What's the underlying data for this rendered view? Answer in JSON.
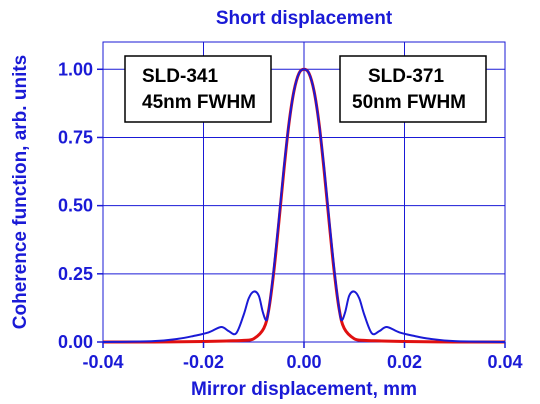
{
  "chart_data": {
    "type": "line",
    "title": "Short displacement",
    "xlabel": "Mirror displacement, mm",
    "ylabel": "Coherence function, arb. units",
    "xlim": [
      -0.04,
      0.04
    ],
    "ylim": [
      0,
      1.1
    ],
    "x_ticks": [
      "-0.04",
      "-0.02",
      "0.00",
      "0.02",
      "0.04"
    ],
    "y_ticks": [
      "0.00",
      "0.25",
      "0.50",
      "0.75",
      "1.00"
    ],
    "x_tick_values": [
      -0.04,
      -0.02,
      0.0,
      0.02,
      0.04
    ],
    "y_tick_values": [
      0.0,
      0.25,
      0.5,
      0.75,
      1.0
    ],
    "grid": true,
    "series": [
      {
        "name": "SLD-341 45nm FWHM",
        "color": "#e01010",
        "x": [
          -0.04,
          -0.03,
          -0.02,
          -0.015,
          -0.012,
          -0.01,
          -0.008,
          -0.007,
          -0.006,
          -0.005,
          -0.004,
          -0.003,
          -0.002,
          -0.001,
          0.0,
          0.001,
          0.002,
          0.003,
          0.004,
          0.005,
          0.006,
          0.007,
          0.008,
          0.01,
          0.012,
          0.015,
          0.02,
          0.03,
          0.04
        ],
        "y": [
          0.0,
          0.0,
          0.002,
          0.004,
          0.006,
          0.012,
          0.05,
          0.12,
          0.26,
          0.44,
          0.63,
          0.8,
          0.92,
          0.985,
          1.0,
          0.985,
          0.92,
          0.8,
          0.63,
          0.44,
          0.26,
          0.12,
          0.05,
          0.012,
          0.006,
          0.004,
          0.002,
          0.0,
          0.0
        ]
      },
      {
        "name": "SLD-371 50nm FWHM",
        "color": "#1a1ad6",
        "x": [
          -0.04,
          -0.03,
          -0.025,
          -0.022,
          -0.019,
          -0.0165,
          -0.015,
          -0.0135,
          -0.012,
          -0.011,
          -0.01,
          -0.009,
          -0.0082,
          -0.0075,
          -0.007,
          -0.006,
          -0.005,
          -0.004,
          -0.003,
          -0.002,
          -0.001,
          0.0,
          0.001,
          0.002,
          0.003,
          0.004,
          0.005,
          0.006,
          0.007,
          0.0075,
          0.0082,
          0.009,
          0.01,
          0.011,
          0.012,
          0.0135,
          0.015,
          0.0165,
          0.019,
          0.022,
          0.025,
          0.03,
          0.04
        ],
        "y": [
          0.0,
          0.003,
          0.012,
          0.022,
          0.035,
          0.055,
          0.04,
          0.032,
          0.1,
          0.16,
          0.185,
          0.17,
          0.11,
          0.08,
          0.12,
          0.27,
          0.45,
          0.64,
          0.8,
          0.92,
          0.985,
          1.0,
          0.985,
          0.92,
          0.8,
          0.64,
          0.45,
          0.27,
          0.12,
          0.08,
          0.11,
          0.17,
          0.185,
          0.16,
          0.1,
          0.032,
          0.04,
          0.055,
          0.035,
          0.022,
          0.012,
          0.003,
          0.0
        ]
      }
    ],
    "annotations": [
      {
        "line1": "SLD-341",
        "line2": "45nm FWHM"
      },
      {
        "line1": "SLD-371",
        "line2": "50nm FWHM"
      }
    ]
  }
}
